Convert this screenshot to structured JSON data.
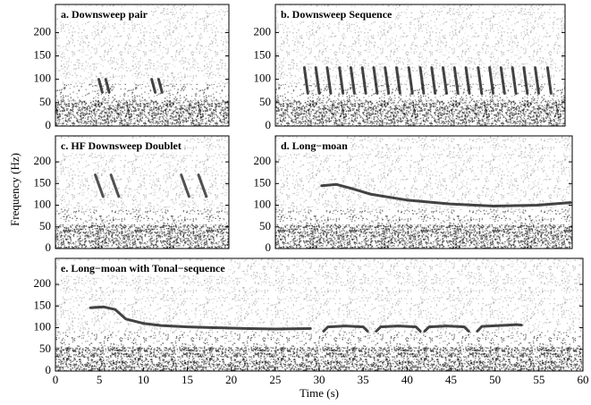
{
  "chart_data": [
    {
      "type": "spectrogram",
      "title": "a. Downsweep pair",
      "xlim": [
        0,
        20
      ],
      "ylim": [
        0,
        260
      ],
      "yticks": [
        0,
        50,
        100,
        150,
        200
      ],
      "color": "#222222",
      "contours": [
        {
          "x": [
            5.0,
            5.4
          ],
          "y": [
            100,
            72
          ]
        },
        {
          "x": [
            5.8,
            6.2
          ],
          "y": [
            100,
            72
          ]
        },
        {
          "x": [
            11.1,
            11.5
          ],
          "y": [
            100,
            72
          ]
        },
        {
          "x": [
            11.9,
            12.3
          ],
          "y": [
            100,
            72
          ]
        }
      ]
    },
    {
      "type": "spectrogram",
      "title": "b. Downsweep Sequence",
      "xlim": [
        0,
        33
      ],
      "ylim": [
        0,
        260
      ],
      "yticks": [
        0,
        50,
        100,
        150,
        200
      ],
      "color": "#222222",
      "contours": [
        {
          "x": [
            3.3,
            3.7
          ],
          "y": [
            125,
            70
          ]
        },
        {
          "x": [
            4.6,
            5.0
          ],
          "y": [
            125,
            70
          ]
        },
        {
          "x": [
            5.9,
            6.3
          ],
          "y": [
            125,
            70
          ]
        },
        {
          "x": [
            7.3,
            7.7
          ],
          "y": [
            125,
            70
          ]
        },
        {
          "x": [
            8.6,
            9.0
          ],
          "y": [
            125,
            70
          ]
        },
        {
          "x": [
            9.9,
            10.3
          ],
          "y": [
            125,
            70
          ]
        },
        {
          "x": [
            11.2,
            11.6
          ],
          "y": [
            125,
            70
          ]
        },
        {
          "x": [
            12.5,
            12.9
          ],
          "y": [
            125,
            70
          ]
        },
        {
          "x": [
            13.8,
            14.2
          ],
          "y": [
            125,
            70
          ]
        },
        {
          "x": [
            15.2,
            15.6
          ],
          "y": [
            125,
            70
          ]
        },
        {
          "x": [
            16.5,
            16.9
          ],
          "y": [
            125,
            70
          ]
        },
        {
          "x": [
            17.8,
            18.2
          ],
          "y": [
            125,
            70
          ]
        },
        {
          "x": [
            19.1,
            19.5
          ],
          "y": [
            125,
            70
          ]
        },
        {
          "x": [
            20.4,
            20.8
          ],
          "y": [
            125,
            70
          ]
        },
        {
          "x": [
            21.7,
            22.1
          ],
          "y": [
            125,
            70
          ]
        },
        {
          "x": [
            23.1,
            23.5
          ],
          "y": [
            125,
            70
          ]
        },
        {
          "x": [
            24.4,
            24.8
          ],
          "y": [
            125,
            70
          ]
        },
        {
          "x": [
            25.7,
            26.1
          ],
          "y": [
            125,
            70
          ]
        },
        {
          "x": [
            27.0,
            27.4
          ],
          "y": [
            125,
            70
          ]
        },
        {
          "x": [
            28.3,
            28.7
          ],
          "y": [
            125,
            70
          ]
        },
        {
          "x": [
            29.6,
            30.0
          ],
          "y": [
            125,
            70
          ]
        },
        {
          "x": [
            31.0,
            31.4
          ],
          "y": [
            125,
            70
          ]
        }
      ]
    },
    {
      "type": "spectrogram",
      "title": "c. HF Downsweep Doublet",
      "xlim": [
        0,
        20
      ],
      "ylim": [
        0,
        260
      ],
      "yticks": [
        0,
        50,
        100,
        150,
        200
      ],
      "color": "#333333",
      "contours": [
        {
          "x": [
            4.6,
            5.5
          ],
          "y": [
            170,
            120
          ]
        },
        {
          "x": [
            6.4,
            7.3
          ],
          "y": [
            170,
            120
          ]
        },
        {
          "x": [
            14.5,
            15.4
          ],
          "y": [
            170,
            120
          ]
        },
        {
          "x": [
            16.5,
            17.4
          ],
          "y": [
            170,
            120
          ]
        }
      ]
    },
    {
      "type": "spectrogram",
      "title": "d. Long−moan",
      "xlim": [
        0,
        34
      ],
      "ylim": [
        0,
        260
      ],
      "yticks": [
        0,
        50,
        100,
        150,
        200
      ],
      "color": "#222222",
      "contours": [
        {
          "x": [
            5.3,
            7,
            8.5,
            11,
            15,
            20,
            25,
            30,
            33.8
          ],
          "y": [
            145,
            148,
            140,
            125,
            112,
            103,
            98,
            100,
            106
          ]
        }
      ]
    },
    {
      "type": "spectrogram",
      "title": "e. Long−moan with Tonal−sequence",
      "xlim": [
        0,
        60
      ],
      "xticks": [
        0,
        5,
        10,
        15,
        20,
        25,
        30,
        35,
        40,
        45,
        50,
        55,
        60
      ],
      "ylim": [
        0,
        260
      ],
      "yticks": [
        0,
        50,
        100,
        150,
        200
      ],
      "color": "#222222",
      "xlabel": "Time (s)",
      "ylabel": "Frequency (Hz)",
      "contours": [
        {
          "x": [
            4,
            5.5,
            6.8,
            8,
            10,
            12,
            15,
            18,
            22,
            25,
            29
          ],
          "y": [
            146,
            148,
            142,
            120,
            110,
            105,
            102,
            100,
            98,
            97,
            98
          ]
        },
        {
          "x": [
            30.5,
            31,
            33,
            35,
            35.5
          ],
          "y": [
            92,
            102,
            104,
            102,
            92
          ]
        },
        {
          "x": [
            36.5,
            37,
            39,
            41,
            41.5
          ],
          "y": [
            92,
            102,
            104,
            102,
            92
          ]
        },
        {
          "x": [
            42,
            42.5,
            44.5,
            46.5,
            47
          ],
          "y": [
            92,
            102,
            104,
            102,
            92
          ]
        },
        {
          "x": [
            48,
            48.5,
            50.5,
            52.5,
            53
          ],
          "y": [
            92,
            103,
            105,
            107,
            106
          ]
        }
      ]
    }
  ]
}
